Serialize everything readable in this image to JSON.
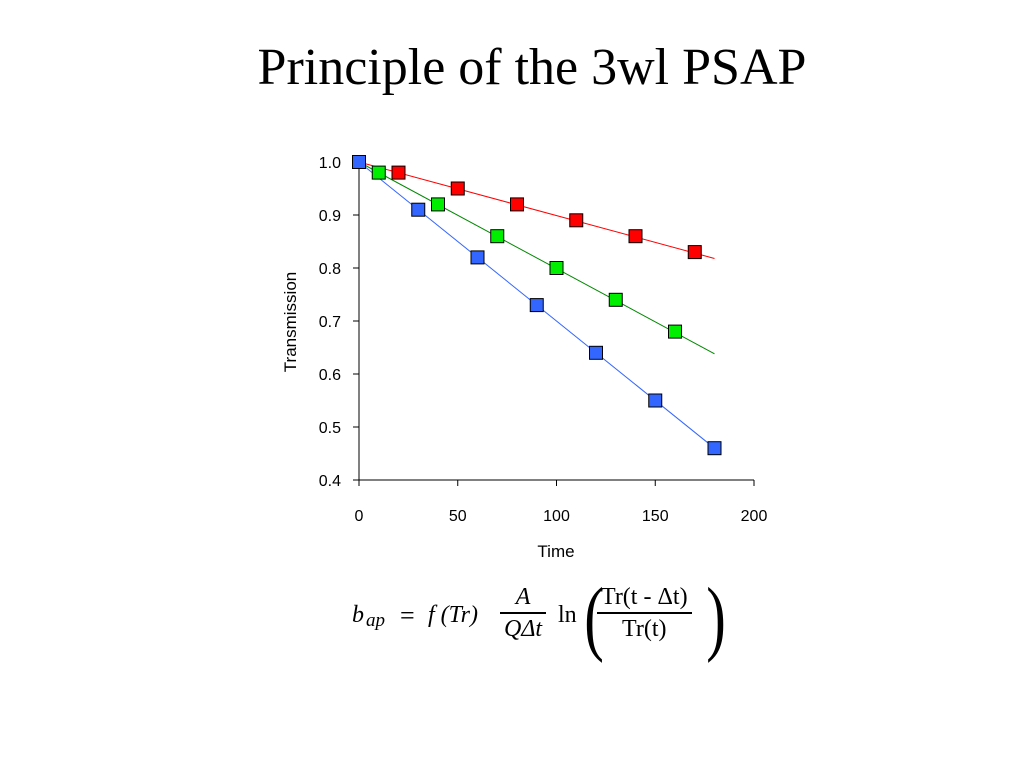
{
  "slide": {
    "title": "Principle of the 3wl PSAP"
  },
  "chart_data": {
    "type": "scatter",
    "title": "",
    "xlabel": "Time",
    "ylabel": "Transmission",
    "xlim": [
      0,
      200
    ],
    "ylim": [
      0.4,
      1.0
    ],
    "xticks": [
      "0",
      "50",
      "100",
      "150",
      "200"
    ],
    "yticks": [
      "0.4",
      "0.5",
      "0.6",
      "0.7",
      "0.8",
      "0.9",
      "1.0"
    ],
    "grid": false,
    "legend": "none",
    "series": [
      {
        "color": "#ff0000",
        "x": [
          0,
          20,
          50,
          80,
          110,
          140,
          170
        ],
        "y": [
          1.0,
          0.98,
          0.95,
          0.92,
          0.89,
          0.86,
          0.83
        ],
        "fit_line": {
          "x": [
            0,
            180
          ],
          "y": [
            1.0,
            0.818
          ]
        }
      },
      {
        "color": "#00ee00",
        "x": [
          10,
          40,
          70,
          100,
          130,
          160
        ],
        "y": [
          0.98,
          0.92,
          0.86,
          0.8,
          0.74,
          0.68
        ],
        "fit_line": {
          "x": [
            0,
            180
          ],
          "y": [
            1.0,
            0.638
          ]
        }
      },
      {
        "color": "#3366ff",
        "x": [
          0,
          30,
          60,
          90,
          120,
          150,
          180
        ],
        "y": [
          1.0,
          0.91,
          0.82,
          0.73,
          0.64,
          0.55,
          0.46
        ],
        "fit_line": {
          "x": [
            0,
            180
          ],
          "y": [
            1.0,
            0.46
          ]
        }
      }
    ]
  },
  "formula": {
    "b": "b",
    "sub": "ap",
    "eq": "=",
    "f_of_tr": "f (Tr)",
    "frac1_num": "A",
    "frac1_den": "QΔt",
    "ln": "ln",
    "paren_left": "(",
    "paren_right": ")",
    "frac2_num": "Tr(t - Δt)",
    "frac2_den": "Tr(t)"
  }
}
